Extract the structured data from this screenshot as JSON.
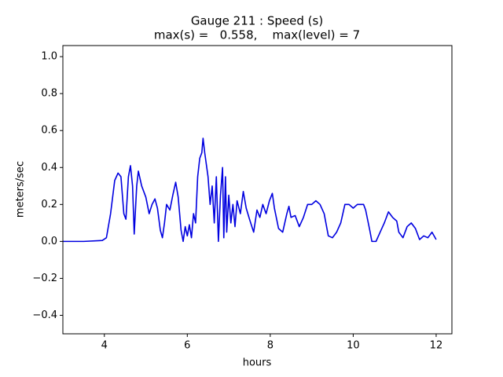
{
  "chart_data": {
    "type": "line",
    "title": "Gauge 211 : Speed (s)",
    "subtitle": "max(s) =   0.558,    max(level) = 7",
    "xlabel": "hours",
    "ylabel": "meters/sec",
    "xlim": [
      3,
      12.38
    ],
    "ylim": [
      -0.5,
      1.06
    ],
    "xticks": [
      4,
      6,
      8,
      10,
      12
    ],
    "yticks": [
      {
        "value": -0.4,
        "label": "−0.4"
      },
      {
        "value": -0.2,
        "label": "−0.2"
      },
      {
        "value": 0,
        "label": "0.0"
      },
      0.2,
      0.4,
      0.6,
      0.8,
      {
        "value": 1,
        "label": "1.0"
      }
    ],
    "series": [
      {
        "color": "#0000e0",
        "x": [
          3.0,
          3.5,
          3.95,
          4.05,
          4.15,
          4.25,
          4.33,
          4.4,
          4.47,
          4.52,
          4.58,
          4.63,
          4.68,
          4.72,
          4.78,
          4.82,
          4.9,
          5.0,
          5.08,
          5.15,
          5.22,
          5.28,
          5.35,
          5.4,
          5.45,
          5.5,
          5.58,
          5.65,
          5.72,
          5.78,
          5.85,
          5.9,
          5.95,
          6.0,
          6.05,
          6.1,
          6.15,
          6.2,
          6.25,
          6.3,
          6.35,
          6.38,
          6.42,
          6.5,
          6.55,
          6.6,
          6.65,
          6.7,
          6.75,
          6.8,
          6.85,
          6.88,
          6.92,
          6.95,
          7.0,
          7.05,
          7.1,
          7.15,
          7.2,
          7.28,
          7.35,
          7.42,
          7.5,
          7.6,
          7.68,
          7.75,
          7.82,
          7.9,
          7.98,
          8.05,
          8.1,
          8.2,
          8.3,
          8.4,
          8.45,
          8.5,
          8.6,
          8.7,
          8.8,
          8.9,
          9.0,
          9.1,
          9.2,
          9.3,
          9.4,
          9.5,
          9.6,
          9.7,
          9.8,
          9.9,
          10.0,
          10.1,
          10.25,
          10.3,
          10.4,
          10.45,
          10.55,
          10.65,
          10.75,
          10.85,
          10.95,
          11.05,
          11.1,
          11.2,
          11.3,
          11.4,
          11.5,
          11.6,
          11.7,
          11.8,
          11.9,
          12.0
        ],
        "values": [
          0.0,
          0.0,
          0.005,
          0.02,
          0.15,
          0.33,
          0.37,
          0.35,
          0.15,
          0.12,
          0.35,
          0.41,
          0.3,
          0.04,
          0.3,
          0.38,
          0.3,
          0.24,
          0.15,
          0.2,
          0.23,
          0.18,
          0.06,
          0.02,
          0.1,
          0.2,
          0.17,
          0.25,
          0.32,
          0.24,
          0.06,
          0.0,
          0.08,
          0.03,
          0.09,
          0.02,
          0.15,
          0.1,
          0.35,
          0.45,
          0.48,
          0.558,
          0.48,
          0.35,
          0.2,
          0.3,
          0.1,
          0.35,
          0.0,
          0.25,
          0.4,
          0.02,
          0.35,
          0.05,
          0.25,
          0.1,
          0.2,
          0.08,
          0.22,
          0.15,
          0.27,
          0.18,
          0.12,
          0.05,
          0.17,
          0.13,
          0.2,
          0.15,
          0.22,
          0.26,
          0.18,
          0.07,
          0.05,
          0.15,
          0.19,
          0.13,
          0.14,
          0.08,
          0.13,
          0.2,
          0.2,
          0.22,
          0.2,
          0.15,
          0.03,
          0.02,
          0.05,
          0.1,
          0.2,
          0.2,
          0.18,
          0.2,
          0.2,
          0.17,
          0.06,
          0.0,
          0.0,
          0.05,
          0.1,
          0.16,
          0.13,
          0.11,
          0.05,
          0.02,
          0.08,
          0.1,
          0.07,
          0.01,
          0.03,
          0.02,
          0.05,
          0.01
        ]
      }
    ]
  }
}
